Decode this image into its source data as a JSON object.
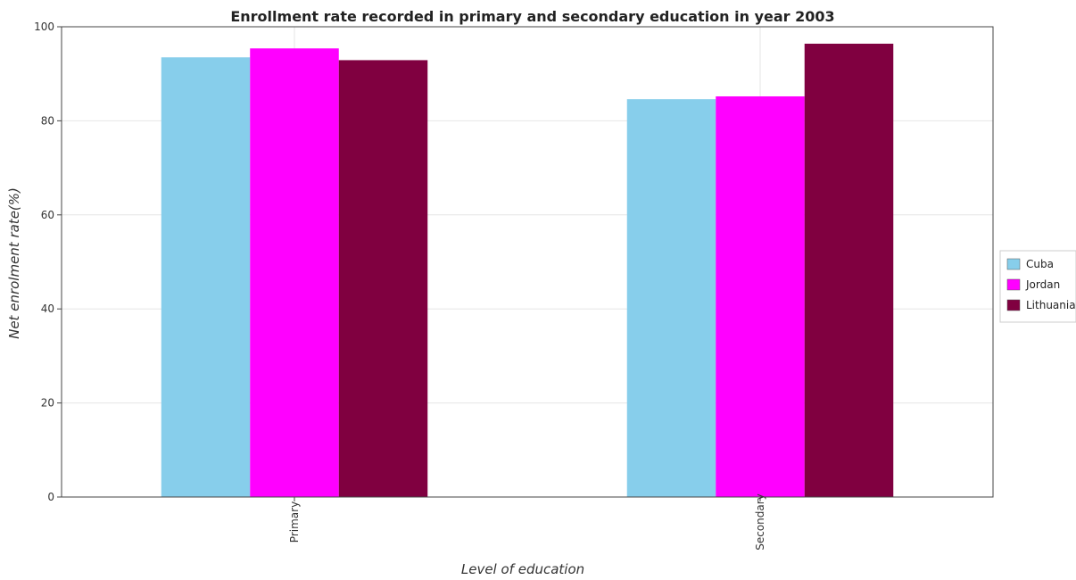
{
  "chart_data": {
    "type": "bar",
    "title": "Enrollment rate recorded in primary and secondary education in year 2003",
    "xlabel": "Level of education",
    "ylabel": "Net enrolment rate(%)",
    "categories": [
      "Primary",
      "Secondary"
    ],
    "ylim": [
      0,
      100
    ],
    "yticks": [
      0,
      20,
      40,
      60,
      80,
      100
    ],
    "grid": true,
    "legend_position": "right",
    "series": [
      {
        "name": "Cuba",
        "color": "#87CEEB",
        "values": [
          93.5,
          84.6
        ]
      },
      {
        "name": "Jordan",
        "color": "#FF00FF",
        "values": [
          95.4,
          85.2
        ]
      },
      {
        "name": "Lithuania",
        "color": "#800040",
        "values": [
          92.9,
          96.4
        ]
      }
    ]
  }
}
